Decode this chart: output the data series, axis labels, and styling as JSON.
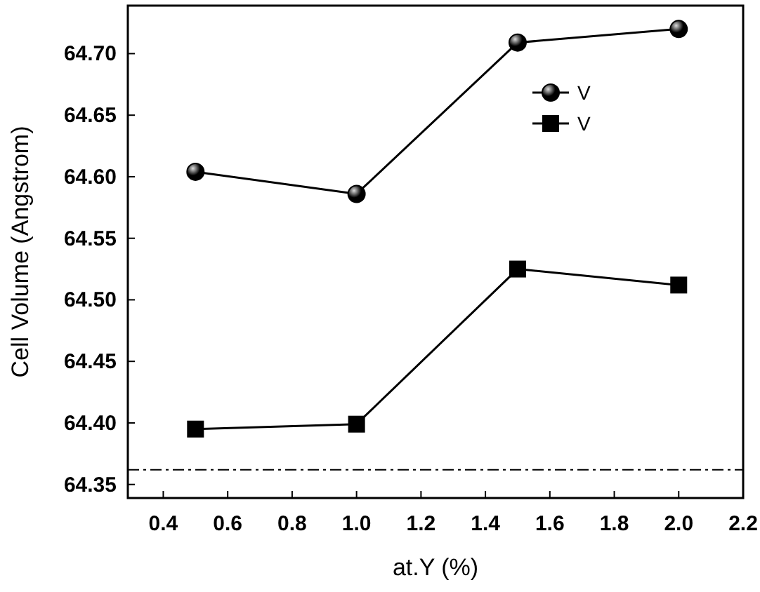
{
  "chart_data": {
    "type": "line",
    "xlabel": "at.Y (%)",
    "ylabel": "Cell Volume (Angstrom)",
    "x": [
      0.5,
      1.0,
      1.5,
      2.0
    ],
    "series": [
      {
        "name": "V",
        "color": "#000000",
        "marker": "circle",
        "values": [
          64.604,
          64.586,
          64.709,
          64.72
        ]
      },
      {
        "name": "V",
        "color": "#000000",
        "marker": "square",
        "values": [
          64.395,
          64.399,
          64.525,
          64.512
        ]
      }
    ],
    "xlim": [
      0.29,
      2.2
    ],
    "xticks": [
      {
        "value": 0.4,
        "label": "0.4"
      },
      {
        "value": 0.6,
        "label": "0.6"
      },
      {
        "value": 0.8,
        "label": "0.8"
      },
      {
        "value": 1.0,
        "label": "1.0"
      },
      {
        "value": 1.2,
        "label": "1.2"
      },
      {
        "value": 1.4,
        "label": "1.4"
      },
      {
        "value": 1.6,
        "label": "1.6"
      },
      {
        "value": 1.8,
        "label": "1.8"
      },
      {
        "value": 2.0,
        "label": "2.0"
      },
      {
        "value": 2.2,
        "label": "2.2"
      }
    ],
    "ylim": [
      64.339,
      64.739
    ],
    "yticks": [
      {
        "value": 64.35,
        "label": "64.35"
      },
      {
        "value": 64.4,
        "label": "64.40"
      },
      {
        "value": 64.45,
        "label": "64.45"
      },
      {
        "value": 64.5,
        "label": "64.50"
      },
      {
        "value": 64.55,
        "label": "64.55"
      },
      {
        "value": 64.6,
        "label": "64.60"
      },
      {
        "value": 64.65,
        "label": "64.65"
      },
      {
        "value": 64.7,
        "label": "64.70"
      }
    ],
    "ref_lines": [
      {
        "axis": "y",
        "value": 64.362,
        "color": "#000000",
        "line_style": "dashdot"
      }
    ],
    "legend": "top right",
    "grid": false,
    "line_style": "solid"
  }
}
